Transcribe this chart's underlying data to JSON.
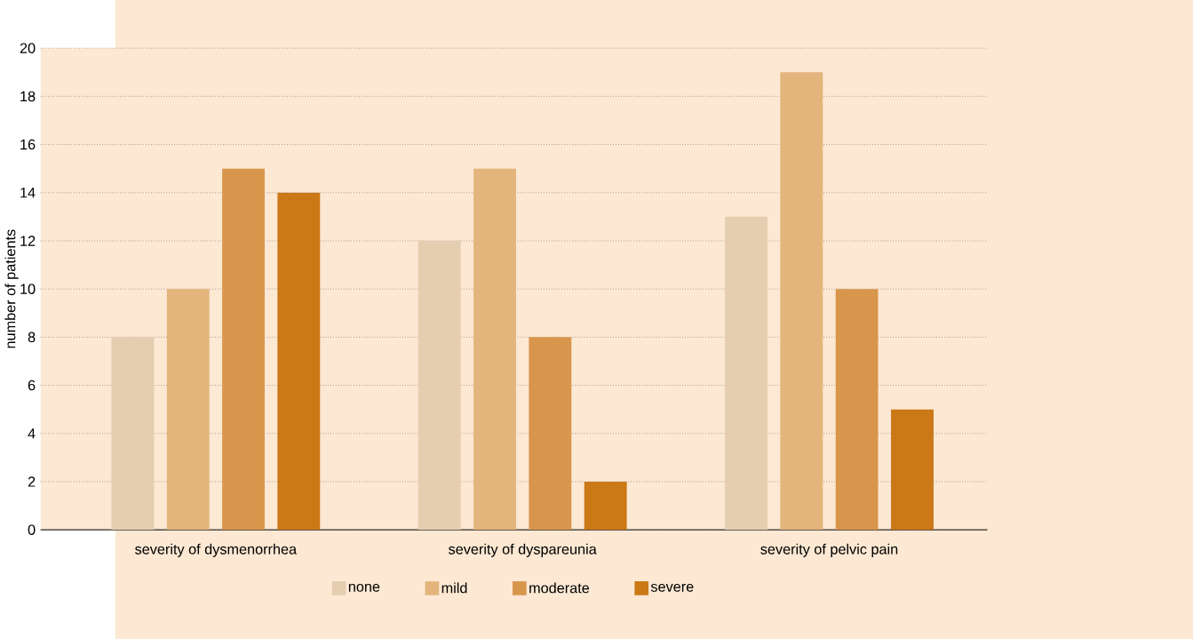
{
  "chart_data": {
    "type": "bar",
    "ylabel": "number of patients",
    "categories": [
      "severity of dysmenorrhea",
      "severity of dyspareunia",
      "severity of pelvic pain"
    ],
    "series": [
      {
        "name": "none",
        "color": "#e5cdb0",
        "values": [
          8,
          12,
          13
        ]
      },
      {
        "name": "mild",
        "color": "#e3b47c",
        "values": [
          10,
          15,
          19
        ]
      },
      {
        "name": "moderate",
        "color": "#d8964c",
        "values": [
          15,
          8,
          10
        ]
      },
      {
        "name": "severe",
        "color": "#cb7816",
        "values": [
          14,
          2,
          5
        ]
      }
    ],
    "ylim": [
      0,
      20
    ],
    "yticks": [
      0,
      2,
      4,
      6,
      8,
      10,
      12,
      14,
      16,
      18,
      20
    ],
    "grid": "y",
    "legend": "bottom"
  }
}
